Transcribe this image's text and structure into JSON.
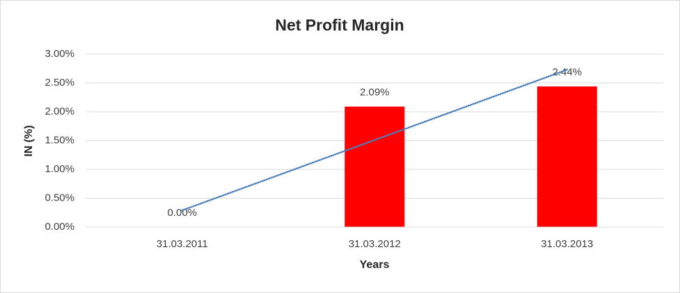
{
  "chart_data": {
    "type": "bar",
    "title": "Net Profit Margin",
    "x_label": "Years",
    "y_label": "IN (%)",
    "categories": [
      "31.03.2011",
      "31.03.2012",
      "31.03.2013"
    ],
    "values": [
      0,
      2.09,
      2.44
    ],
    "value_labels": [
      "0.00%",
      "2.09%",
      "2.44%"
    ],
    "color": "#ff0000",
    "ylim": [
      0,
      3
    ],
    "yticks": [
      {
        "value": 0,
        "label": "0.00%"
      },
      {
        "value": 0.5,
        "label": "0.50%"
      },
      {
        "value": 1,
        "label": "1.00%"
      },
      {
        "value": 1.5,
        "label": "1.50%"
      },
      {
        "value": 2,
        "label": "2.00%"
      },
      {
        "value": 2.5,
        "label": "2.50%"
      },
      {
        "value": 3,
        "label": "3.00%"
      }
    ],
    "grid": true,
    "trendline": {
      "type": "linear",
      "color": "#4a7ebb"
    }
  }
}
